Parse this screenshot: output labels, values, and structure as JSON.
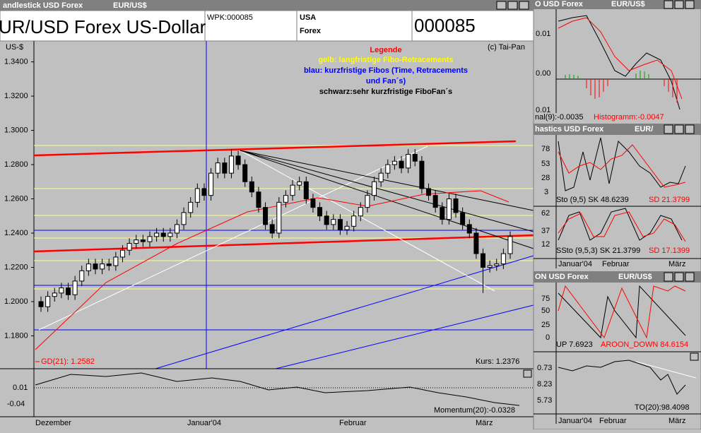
{
  "main_window": {
    "title": "andlestick USD Forex",
    "subtitle": "EUR/US$",
    "header": {
      "name": "UR/USD Forex  US-Dollar",
      "wpk": "WPK:000085",
      "country": "USA",
      "market": "Forex",
      "number": "000085"
    },
    "chart": {
      "type": "candlestick",
      "y_unit": "US-$",
      "copyright": "(c) Tai-Pan",
      "legend": {
        "title": "Legende",
        "lines": [
          "gelb: langfristige Fibo-Retracements",
          "blau: kurzfristige Fibos (Time, Retracements",
          "und Fan´s)",
          "schwarz:sehr kurzfristige FiboFan´s"
        ]
      },
      "ma_label": "GD(21): 1.2582",
      "price_label": "Kurs: 1.2376",
      "ylim": [
        1.1608,
        1.3522
      ],
      "yticks": [
        {
          "value": 1.34,
          "label": "1.3400"
        },
        {
          "value": 1.32,
          "label": "1.3200"
        },
        {
          "value": 1.3,
          "label": "1.3000"
        },
        {
          "value": 1.28,
          "label": "1.2800"
        },
        {
          "value": 1.26,
          "label": "1.2600"
        },
        {
          "value": 1.24,
          "label": "1.2400"
        },
        {
          "value": 1.22,
          "label": "1.2200"
        },
        {
          "value": 1.2,
          "label": "1.2000"
        },
        {
          "value": 1.18,
          "label": "1.1800"
        }
      ],
      "candles": [
        [
          1.2,
          1.203,
          1.194,
          1.197
        ],
        [
          1.197,
          1.206,
          1.194,
          1.203
        ],
        [
          1.203,
          1.208,
          1.2,
          1.205
        ],
        [
          1.205,
          1.211,
          1.202,
          1.208
        ],
        [
          1.208,
          1.211,
          1.201,
          1.204
        ],
        [
          1.204,
          1.215,
          1.201,
          1.212
        ],
        [
          1.212,
          1.221,
          1.209,
          1.218
        ],
        [
          1.218,
          1.225,
          1.215,
          1.222
        ],
        [
          1.222,
          1.225,
          1.216,
          1.219
        ],
        [
          1.219,
          1.225,
          1.216,
          1.222
        ],
        [
          1.222,
          1.225,
          1.218,
          1.221
        ],
        [
          1.221,
          1.229,
          1.218,
          1.226
        ],
        [
          1.226,
          1.233,
          1.223,
          1.23
        ],
        [
          1.23,
          1.237,
          1.227,
          1.234
        ],
        [
          1.234,
          1.239,
          1.231,
          1.236
        ],
        [
          1.236,
          1.239,
          1.232,
          1.235
        ],
        [
          1.235,
          1.241,
          1.232,
          1.238
        ],
        [
          1.238,
          1.243,
          1.235,
          1.24
        ],
        [
          1.24,
          1.243,
          1.235,
          1.238
        ],
        [
          1.238,
          1.243,
          1.235,
          1.24
        ],
        [
          1.24,
          1.248,
          1.237,
          1.245
        ],
        [
          1.245,
          1.255,
          1.242,
          1.252
        ],
        [
          1.252,
          1.261,
          1.249,
          1.258
        ],
        [
          1.258,
          1.269,
          1.255,
          1.266
        ],
        [
          1.266,
          1.269,
          1.259,
          1.262
        ],
        [
          1.262,
          1.278,
          1.259,
          1.275
        ],
        [
          1.275,
          1.284,
          1.272,
          1.281
        ],
        [
          1.281,
          1.284,
          1.272,
          1.275
        ],
        [
          1.275,
          1.289,
          1.272,
          1.285
        ],
        [
          1.285,
          1.288,
          1.277,
          1.28
        ],
        [
          1.28,
          1.283,
          1.267,
          1.27
        ],
        [
          1.27,
          1.273,
          1.261,
          1.264
        ],
        [
          1.264,
          1.267,
          1.252,
          1.255
        ],
        [
          1.255,
          1.258,
          1.242,
          1.245
        ],
        [
          1.245,
          1.248,
          1.237,
          1.24
        ],
        [
          1.24,
          1.261,
          1.237,
          1.258
        ],
        [
          1.258,
          1.265,
          1.255,
          1.262
        ],
        [
          1.262,
          1.271,
          1.259,
          1.268
        ],
        [
          1.268,
          1.273,
          1.265,
          1.27
        ],
        [
          1.27,
          1.273,
          1.257,
          1.26
        ],
        [
          1.26,
          1.263,
          1.252,
          1.255
        ],
        [
          1.255,
          1.258,
          1.247,
          1.25
        ],
        [
          1.25,
          1.253,
          1.242,
          1.245
        ],
        [
          1.245,
          1.251,
          1.242,
          1.248
        ],
        [
          1.248,
          1.251,
          1.239,
          1.242
        ],
        [
          1.242,
          1.247,
          1.239,
          1.244
        ],
        [
          1.244,
          1.253,
          1.241,
          1.25
        ],
        [
          1.25,
          1.258,
          1.247,
          1.255
        ],
        [
          1.255,
          1.265,
          1.252,
          1.262
        ],
        [
          1.262,
          1.273,
          1.259,
          1.27
        ],
        [
          1.27,
          1.278,
          1.267,
          1.275
        ],
        [
          1.275,
          1.283,
          1.272,
          1.28
        ],
        [
          1.28,
          1.285,
          1.277,
          1.282
        ],
        [
          1.282,
          1.285,
          1.275,
          1.278
        ],
        [
          1.278,
          1.289,
          1.275,
          1.286
        ],
        [
          1.286,
          1.289,
          1.279,
          1.282
        ],
        [
          1.282,
          1.285,
          1.263,
          1.266
        ],
        [
          1.266,
          1.269,
          1.259,
          1.262
        ],
        [
          1.262,
          1.265,
          1.252,
          1.255
        ],
        [
          1.255,
          1.258,
          1.245,
          1.248
        ],
        [
          1.248,
          1.263,
          1.245,
          1.26
        ],
        [
          1.26,
          1.263,
          1.249,
          1.252
        ],
        [
          1.252,
          1.255,
          1.242,
          1.245
        ],
        [
          1.245,
          1.248,
          1.237,
          1.24
        ],
        [
          1.24,
          1.243,
          1.225,
          1.228
        ],
        [
          1.228,
          1.231,
          1.205,
          1.22
        ],
        [
          1.22,
          1.224,
          1.217,
          1.221
        ],
        [
          1.221,
          1.225,
          1.218,
          1.222
        ],
        [
          1.222,
          1.231,
          1.219,
          1.228
        ],
        [
          1.228,
          1.241,
          1.225,
          1.238
        ]
      ]
    },
    "momentum": {
      "ticks": [
        "0.01",
        "-0.04"
      ],
      "label": "Momentum(20):-0.0328"
    },
    "x_labels": [
      "Dezember",
      "Januar'04",
      "Februar",
      "März"
    ]
  },
  "panels": [
    {
      "title": "O USD Forex",
      "subtitle": "EUR/US$",
      "ticks": [
        "0.01",
        "0.00",
        "0.01"
      ],
      "label": "nal(9):-0.0035",
      "label_red": "Histogramm:-0.0047"
    },
    {
      "title": "hastics USD Forex",
      "subtitle": "EUR/",
      "ticks": [
        "78",
        "53",
        "28",
        "3"
      ],
      "label": "Sto (9,5) SK 48.6239",
      "label_red": "SD 21.3799"
    },
    {
      "ticks": [
        "62",
        "37",
        "12"
      ],
      "label": "SSto (9,5,3) SK 21.3799",
      "label_red": "SD 17.1399",
      "x_labels": [
        "Januar'04",
        "Februar",
        "März"
      ]
    },
    {
      "title": "ON USD Forex",
      "subtitle": "EUR/US$",
      "ticks": [
        "75",
        "50",
        "25",
        "0"
      ],
      "label": "UP 7.6923",
      "label_red": "AROON_DOWN 84.6154"
    },
    {
      "ticks": [
        "0.73",
        "8.23",
        "5.73"
      ],
      "label": "TO(20):98.4098",
      "x_labels": [
        "Januar'04",
        "Februar",
        "März"
      ]
    }
  ]
}
